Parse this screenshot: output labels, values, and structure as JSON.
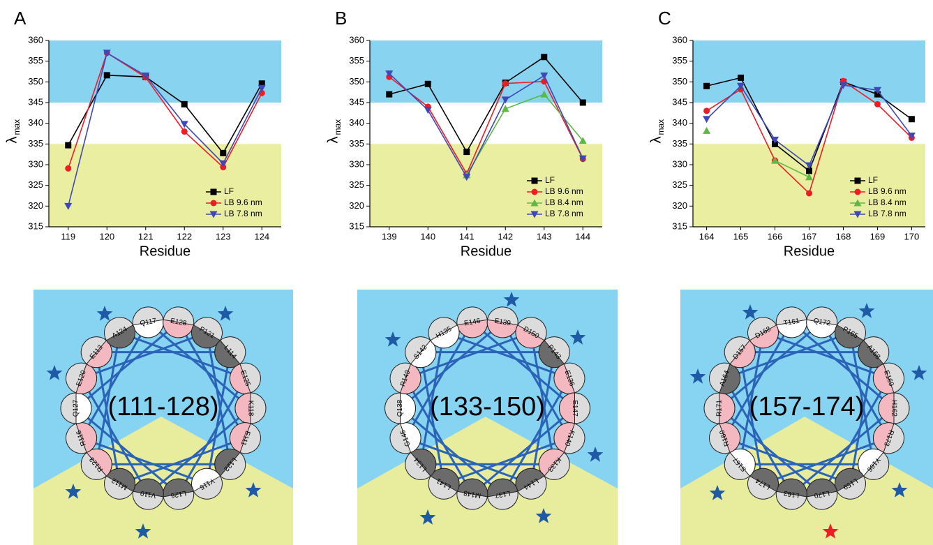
{
  "chart_data": [
    {
      "type": "line",
      "panel": "A",
      "x_label": "Residue",
      "y_label": "λ",
      "y_label_sub": "max",
      "x": [
        119,
        120,
        121,
        122,
        123,
        124
      ],
      "xlim": [
        118.5,
        124.5
      ],
      "xticks": [
        119,
        120,
        121,
        122,
        123,
        124
      ],
      "ylim": [
        315,
        360
      ],
      "yticks": [
        315,
        320,
        325,
        330,
        335,
        340,
        345,
        350,
        355,
        360
      ],
      "bands": [
        {
          "from": 345,
          "to": 360,
          "color": "#87d3f0"
        },
        {
          "from": 315,
          "to": 335,
          "color": "#e9eea0"
        }
      ],
      "legend": "lower right",
      "series": [
        {
          "name": "LF",
          "color": "#000000",
          "marker": "square",
          "values": [
            334.7,
            351.6,
            351.2,
            344.6,
            332.8,
            349.6
          ]
        },
        {
          "name": "LB 9.6 nm",
          "color": "#ee1c25",
          "marker": "circle",
          "values": [
            329.1,
            357,
            351.1,
            338,
            329.4,
            347.3
          ]
        },
        {
          "name": "LB 7.8 nm",
          "color": "#3f48b8",
          "marker": "triangle-down",
          "values": [
            320,
            357,
            351.5,
            339.8,
            330.3,
            348.5
          ]
        }
      ]
    },
    {
      "type": "line",
      "panel": "B",
      "x_label": "Residue",
      "y_label": "λ",
      "y_label_sub": "max",
      "x": [
        139,
        140,
        141,
        142,
        143,
        144
      ],
      "xlim": [
        138.5,
        144.5
      ],
      "xticks": [
        139,
        140,
        141,
        142,
        143,
        144
      ],
      "ylim": [
        315,
        360
      ],
      "yticks": [
        315,
        320,
        325,
        330,
        335,
        340,
        345,
        350,
        355,
        360
      ],
      "bands": [
        {
          "from": 345,
          "to": 360,
          "color": "#87d3f0"
        },
        {
          "from": 315,
          "to": 335,
          "color": "#e9eea0"
        }
      ],
      "legend": "lower right",
      "series": [
        {
          "name": "LF",
          "color": "#000000",
          "marker": "square",
          "values": [
            347,
            349.5,
            333.1,
            349.8,
            356,
            345
          ]
        },
        {
          "name": "LB 9.6 nm",
          "color": "#ee1c25",
          "marker": "circle",
          "values": [
            351.2,
            344,
            327.8,
            349.6,
            350.1,
            331.4
          ]
        },
        {
          "name": "LB 8.4 nm",
          "color": "#5cb946",
          "marker": "triangle-up",
          "values": [
            null,
            null,
            327.5,
            343.5,
            347,
            335.8
          ]
        },
        {
          "name": "LB 7.8 nm",
          "color": "#3f48b8",
          "marker": "triangle-down",
          "values": [
            352,
            343.2,
            327,
            345.7,
            351.5,
            331.5
          ]
        }
      ]
    },
    {
      "type": "line",
      "panel": "C",
      "x_label": "Residue",
      "y_label": "λ",
      "y_label_sub": "max",
      "x": [
        164,
        165,
        166,
        167,
        168,
        169,
        170
      ],
      "xlim": [
        163.6,
        170.4
      ],
      "xticks": [
        164,
        165,
        166,
        167,
        168,
        169,
        170
      ],
      "ylim": [
        315,
        360
      ],
      "yticks": [
        315,
        320,
        325,
        330,
        335,
        340,
        345,
        350,
        355,
        360
      ],
      "bands": [
        {
          "from": 345,
          "to": 360,
          "color": "#87d3f0"
        },
        {
          "from": 315,
          "to": 335,
          "color": "#e9eea0"
        }
      ],
      "legend": "lower right",
      "series": [
        {
          "name": "LF",
          "color": "#000000",
          "marker": "square",
          "values": [
            349,
            351,
            335,
            328.5,
            350,
            347,
            341
          ]
        },
        {
          "name": "LB 9.6 nm",
          "color": "#ee1c25",
          "marker": "circle",
          "values": [
            343,
            348.2,
            331,
            323.1,
            350.2,
            344.6,
            336.5
          ]
        },
        {
          "name": "LB 8.4 nm",
          "color": "#5cb946",
          "marker": "triangle-up",
          "values": [
            338.2,
            null,
            331,
            327,
            null,
            null,
            null
          ]
        },
        {
          "name": "LB 7.8 nm",
          "color": "#3f48b8",
          "marker": "triangle-down",
          "values": [
            341,
            349,
            336,
            329.8,
            349.2,
            348,
            337
          ]
        }
      ]
    }
  ],
  "wheels": [
    {
      "label": "(111-128)",
      "residues": [
        {
          "name": "Q117",
          "color": "#ffffff"
        },
        {
          "name": "E128",
          "color": "#f4b8c0"
        },
        {
          "name": "P121",
          "color": "#6b6b6b"
        },
        {
          "name": "L114",
          "color": "#6b6b6b"
        },
        {
          "name": "E125",
          "color": "#f4b8c0"
        },
        {
          "name": "K118",
          "color": "#f4b8c0"
        },
        {
          "name": "E111",
          "color": "#f4b8c0"
        },
        {
          "name": "L122",
          "color": "#6b6b6b"
        },
        {
          "name": "Y115",
          "color": "#ffffff"
        },
        {
          "name": "L126",
          "color": "#6b6b6b"
        },
        {
          "name": "V119",
          "color": "#6b6b6b"
        },
        {
          "name": "M112",
          "color": "#6b6b6b"
        },
        {
          "name": "R123",
          "color": "#f4b8c0"
        },
        {
          "name": "R116",
          "color": "#f4b8c0"
        },
        {
          "name": "Q127",
          "color": "#ffffff"
        },
        {
          "name": "E120",
          "color": "#f4b8c0"
        },
        {
          "name": "E113",
          "color": "#f4b8c0"
        },
        {
          "name": "A124",
          "color": "#6b6b6b"
        }
      ]
    },
    {
      "label": "(133-150)",
      "residues": [
        {
          "name": "E146",
          "color": "#f4b8c0"
        },
        {
          "name": "E139",
          "color": "#f4b8c0"
        },
        {
          "name": "D150",
          "color": "#f4b8c0"
        },
        {
          "name": "P143",
          "color": "#6b6b6b"
        },
        {
          "name": "E136",
          "color": "#f4b8c0"
        },
        {
          "name": "E147",
          "color": "#f4b8c0"
        },
        {
          "name": "K140",
          "color": "#f4b8c0"
        },
        {
          "name": "K133",
          "color": "#f4b8c0"
        },
        {
          "name": "L144",
          "color": "#6b6b6b"
        },
        {
          "name": "L137",
          "color": "#6b6b6b"
        },
        {
          "name": "M148",
          "color": "#6b6b6b"
        },
        {
          "name": "L141",
          "color": "#6b6b6b"
        },
        {
          "name": "L134",
          "color": "#6b6b6b"
        },
        {
          "name": "G145",
          "color": "#ffffff"
        },
        {
          "name": "Q138",
          "color": "#ffffff"
        },
        {
          "name": "R149",
          "color": "#f4b8c0"
        },
        {
          "name": "S142",
          "color": "#ffffff"
        },
        {
          "name": "H135",
          "color": "#ffffff"
        }
      ]
    },
    {
      "label": "(157-174)",
      "residues": [
        {
          "name": "T161",
          "color": "#ffffff"
        },
        {
          "name": "Q172",
          "color": "#ffffff"
        },
        {
          "name": "P165",
          "color": "#6b6b6b"
        },
        {
          "name": "A158",
          "color": "#6b6b6b"
        },
        {
          "name": "E169",
          "color": "#f4b8c0"
        },
        {
          "name": "H162",
          "color": "#f4b8c0"
        },
        {
          "name": "R173",
          "color": "#f4b8c0"
        },
        {
          "name": "Y166",
          "color": "#ffffff"
        },
        {
          "name": "L159",
          "color": "#6b6b6b"
        },
        {
          "name": "L170",
          "color": "#6b6b6b"
        },
        {
          "name": "L163",
          "color": "#6b6b6b"
        },
        {
          "name": "L174",
          "color": "#6b6b6b"
        },
        {
          "name": "S167",
          "color": "#ffffff"
        },
        {
          "name": "R160",
          "color": "#f4b8c0"
        },
        {
          "name": "R171",
          "color": "#f4b8c0"
        },
        {
          "name": "A164",
          "color": "#6b6b6b"
        },
        {
          "name": "D157",
          "color": "#f4b8c0"
        },
        {
          "name": "D168",
          "color": "#f4b8c0"
        }
      ]
    }
  ]
}
